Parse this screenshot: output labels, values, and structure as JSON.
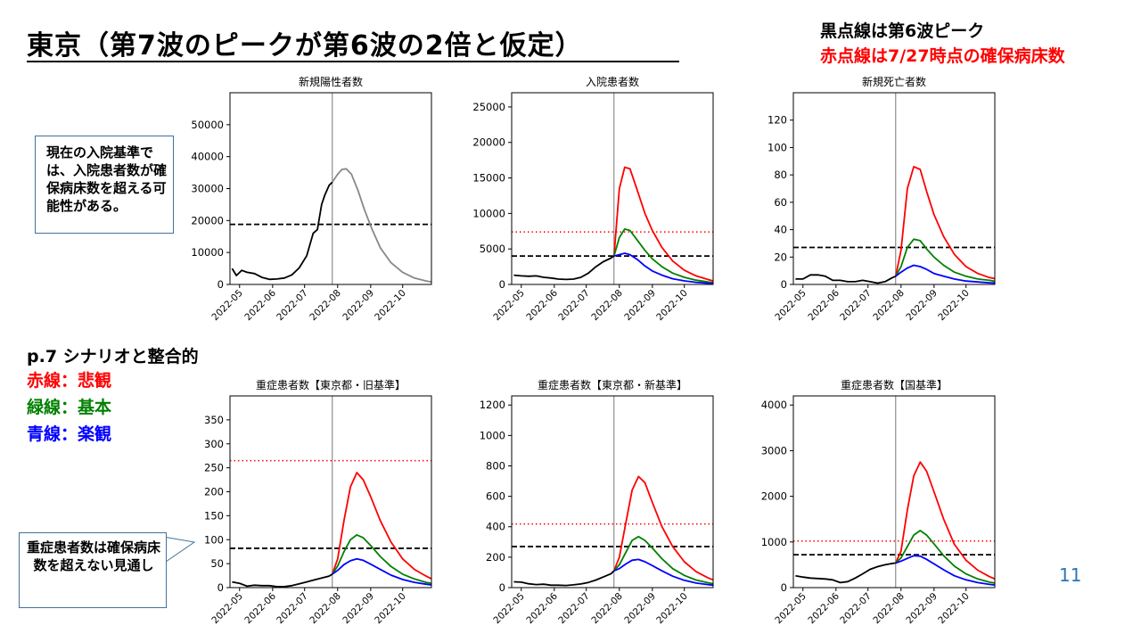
{
  "title": "東京（第7波のピークが第6波の2倍と仮定）",
  "notes": {
    "black_dotted": "黒点線は第6波ピーク",
    "red_dotted": "赤点線は7/27時点の確保病床数"
  },
  "callouts": {
    "admission": "現在の入院基準では、入院患者数が確保病床数を超える可能性がある。",
    "severe": "重症患者数は確保病床数を超えない見通し"
  },
  "legend": {
    "ref": "p.7 シナリオと整合的",
    "red": "赤線：悲観",
    "green": "緑線：基本",
    "blue": "青線：楽観"
  },
  "page_number": "11",
  "colors": {
    "red": "#ff0000",
    "green": "#008000",
    "blue": "#0000ff",
    "black": "#000000",
    "gray": "#888888"
  },
  "chart_data": [
    {
      "type": "line",
      "title": "新規陽性者数",
      "x_ticks": [
        "2022-05",
        "2022-06",
        "2022-07",
        "2022-08",
        "2022-09",
        "2022-10"
      ],
      "ylim": [
        0,
        60000
      ],
      "y_ticks": [
        0,
        10000,
        20000,
        30000,
        40000,
        50000
      ],
      "vline": "2022-07-27",
      "hlines": [
        {
          "value": 18800,
          "style": "black-dashed"
        }
      ],
      "series": [
        {
          "color": "black",
          "x": [
            "2022-04-24",
            "2022-04-28",
            "2022-05-03",
            "2022-05-08",
            "2022-05-15",
            "2022-05-22",
            "2022-05-29",
            "2022-06-05",
            "2022-06-12",
            "2022-06-19",
            "2022-06-26",
            "2022-07-03",
            "2022-07-09",
            "2022-07-13",
            "2022-07-17",
            "2022-07-20",
            "2022-07-24",
            "2022-07-27"
          ],
          "y": [
            5000,
            2800,
            4400,
            3800,
            3400,
            2200,
            1600,
            1700,
            2000,
            3000,
            5200,
            9000,
            16000,
            17200,
            25000,
            28000,
            31000,
            32000
          ]
        },
        {
          "color": "gray",
          "x": [
            "2022-07-27",
            "2022-08-01",
            "2022-08-05",
            "2022-08-09",
            "2022-08-14",
            "2022-08-20",
            "2022-08-26",
            "2022-09-02",
            "2022-09-10",
            "2022-09-20",
            "2022-10-01",
            "2022-10-12",
            "2022-10-23",
            "2022-10-30"
          ],
          "y": [
            32000,
            34500,
            36000,
            36200,
            34500,
            29500,
            23500,
            17500,
            11500,
            6800,
            3800,
            2000,
            1100,
            700
          ]
        }
      ]
    },
    {
      "type": "line",
      "title": "入院患者数",
      "x_ticks": [
        "2022-05",
        "2022-06",
        "2022-07",
        "2022-08",
        "2022-09",
        "2022-10"
      ],
      "ylim": [
        0,
        27000
      ],
      "y_ticks": [
        0,
        5000,
        10000,
        15000,
        20000,
        25000
      ],
      "vline": "2022-07-27",
      "hlines": [
        {
          "value": 4000,
          "style": "black-dashed"
        },
        {
          "value": 7400,
          "style": "red-dotted"
        }
      ],
      "series": [
        {
          "color": "black",
          "x": [
            "2022-04-24",
            "2022-05-01",
            "2022-05-08",
            "2022-05-15",
            "2022-05-22",
            "2022-05-29",
            "2022-06-05",
            "2022-06-12",
            "2022-06-19",
            "2022-06-26",
            "2022-07-03",
            "2022-07-10",
            "2022-07-17",
            "2022-07-24",
            "2022-07-27"
          ],
          "y": [
            1300,
            1200,
            1150,
            1200,
            1000,
            900,
            750,
            700,
            750,
            1000,
            1600,
            2500,
            3200,
            3700,
            4000
          ]
        },
        {
          "color": "red",
          "x": [
            "2022-07-27",
            "2022-08-01",
            "2022-08-06",
            "2022-08-11",
            "2022-08-18",
            "2022-08-25",
            "2022-09-01",
            "2022-09-10",
            "2022-09-20",
            "2022-10-01",
            "2022-10-12",
            "2022-10-23",
            "2022-10-30"
          ],
          "y": [
            4000,
            13500,
            16500,
            16300,
            13200,
            10000,
            7600,
            5200,
            3300,
            2000,
            1200,
            700,
            400
          ]
        },
        {
          "color": "green",
          "x": [
            "2022-07-27",
            "2022-08-01",
            "2022-08-06",
            "2022-08-11",
            "2022-08-18",
            "2022-08-25",
            "2022-09-01",
            "2022-09-10",
            "2022-09-20",
            "2022-10-01",
            "2022-10-12",
            "2022-10-23",
            "2022-10-30"
          ],
          "y": [
            4000,
            6600,
            7800,
            7600,
            6200,
            4800,
            3600,
            2500,
            1600,
            1000,
            600,
            350,
            220
          ]
        },
        {
          "color": "blue",
          "x": [
            "2022-07-27",
            "2022-08-01",
            "2022-08-06",
            "2022-08-11",
            "2022-08-18",
            "2022-08-25",
            "2022-09-01",
            "2022-09-10",
            "2022-09-20",
            "2022-10-01",
            "2022-10-12",
            "2022-10-23",
            "2022-10-30"
          ],
          "y": [
            4000,
            4200,
            4400,
            4200,
            3500,
            2600,
            1900,
            1300,
            800,
            500,
            300,
            180,
            120
          ]
        }
      ]
    },
    {
      "type": "line",
      "title": "新規死亡者数",
      "x_ticks": [
        "2022-05",
        "2022-06",
        "2022-07",
        "2022-08",
        "2022-09",
        "2022-10"
      ],
      "ylim": [
        0,
        140
      ],
      "y_ticks": [
        0,
        20,
        40,
        60,
        80,
        100,
        120
      ],
      "vline": "2022-07-27",
      "hlines": [
        {
          "value": 27,
          "style": "black-dashed"
        }
      ],
      "series": [
        {
          "color": "black",
          "x": [
            "2022-04-24",
            "2022-05-01",
            "2022-05-08",
            "2022-05-15",
            "2022-05-22",
            "2022-05-29",
            "2022-06-05",
            "2022-06-12",
            "2022-06-19",
            "2022-06-26",
            "2022-07-03",
            "2022-07-10",
            "2022-07-17",
            "2022-07-24",
            "2022-07-27"
          ],
          "y": [
            4,
            4,
            7,
            7,
            6,
            3,
            3,
            2,
            2,
            3,
            2,
            1,
            2,
            5,
            6
          ]
        },
        {
          "color": "red",
          "x": [
            "2022-07-27",
            "2022-08-01",
            "2022-08-07",
            "2022-08-13",
            "2022-08-19",
            "2022-08-25",
            "2022-09-01",
            "2022-09-10",
            "2022-09-20",
            "2022-10-01",
            "2022-10-12",
            "2022-10-23",
            "2022-10-30"
          ],
          "y": [
            6,
            25,
            70,
            86,
            84,
            68,
            51,
            35,
            22,
            13,
            8,
            5,
            4
          ]
        },
        {
          "color": "green",
          "x": [
            "2022-07-27",
            "2022-08-01",
            "2022-08-07",
            "2022-08-13",
            "2022-08-19",
            "2022-08-25",
            "2022-09-01",
            "2022-09-10",
            "2022-09-20",
            "2022-10-01",
            "2022-10-12",
            "2022-10-23",
            "2022-10-30"
          ],
          "y": [
            6,
            13,
            27,
            33,
            32,
            26,
            20,
            14,
            9,
            6,
            4,
            3,
            2
          ]
        },
        {
          "color": "blue",
          "x": [
            "2022-07-27",
            "2022-08-01",
            "2022-08-07",
            "2022-08-13",
            "2022-08-19",
            "2022-08-25",
            "2022-09-01",
            "2022-09-10",
            "2022-09-20",
            "2022-10-01",
            "2022-10-12",
            "2022-10-23",
            "2022-10-30"
          ],
          "y": [
            6,
            9,
            12,
            14,
            13,
            11,
            8,
            6,
            4,
            2.5,
            1.8,
            1.2,
            1
          ]
        }
      ]
    },
    {
      "type": "line",
      "title": "重症患者数【東京都・旧基準】",
      "x_ticks": [
        "2022-05",
        "2022-06",
        "2022-07",
        "2022-08",
        "2022-09",
        "2022-10"
      ],
      "ylim": [
        0,
        400
      ],
      "y_ticks": [
        0,
        50,
        100,
        150,
        200,
        250,
        300,
        350
      ],
      "vline": "2022-07-27",
      "hlines": [
        {
          "value": 82,
          "style": "black-dashed"
        },
        {
          "value": 265,
          "style": "red-dotted"
        }
      ],
      "series": [
        {
          "color": "black",
          "x": [
            "2022-04-24",
            "2022-05-01",
            "2022-05-08",
            "2022-05-15",
            "2022-05-22",
            "2022-05-29",
            "2022-06-05",
            "2022-06-12",
            "2022-06-19",
            "2022-06-26",
            "2022-07-03",
            "2022-07-10",
            "2022-07-17",
            "2022-07-24",
            "2022-07-27"
          ],
          "y": [
            12,
            9,
            3,
            5,
            4,
            4,
            2,
            2,
            4,
            8,
            12,
            16,
            20,
            24,
            28
          ]
        },
        {
          "color": "red",
          "x": [
            "2022-07-27",
            "2022-08-01",
            "2022-08-07",
            "2022-08-13",
            "2022-08-19",
            "2022-08-25",
            "2022-09-01",
            "2022-09-10",
            "2022-09-20",
            "2022-10-01",
            "2022-10-12",
            "2022-10-23",
            "2022-10-30"
          ],
          "y": [
            28,
            60,
            140,
            210,
            240,
            225,
            190,
            140,
            95,
            60,
            38,
            24,
            16
          ]
        },
        {
          "color": "green",
          "x": [
            "2022-07-27",
            "2022-08-01",
            "2022-08-07",
            "2022-08-13",
            "2022-08-19",
            "2022-08-25",
            "2022-09-01",
            "2022-09-10",
            "2022-09-20",
            "2022-10-01",
            "2022-10-12",
            "2022-10-23",
            "2022-10-30"
          ],
          "y": [
            28,
            45,
            75,
            100,
            110,
            104,
            88,
            65,
            44,
            28,
            18,
            11,
            8
          ]
        },
        {
          "color": "blue",
          "x": [
            "2022-07-27",
            "2022-08-01",
            "2022-08-07",
            "2022-08-13",
            "2022-08-19",
            "2022-08-25",
            "2022-09-01",
            "2022-09-10",
            "2022-09-20",
            "2022-10-01",
            "2022-10-12",
            "2022-10-23",
            "2022-10-30"
          ],
          "y": [
            28,
            36,
            48,
            56,
            60,
            57,
            49,
            38,
            26,
            17,
            11,
            7,
            5
          ]
        }
      ]
    },
    {
      "type": "line",
      "title": "重症患者数【東京都・新基準】",
      "x_ticks": [
        "2022-05",
        "2022-06",
        "2022-07",
        "2022-08",
        "2022-09",
        "2022-10"
      ],
      "ylim": [
        0,
        1260
      ],
      "y_ticks": [
        0,
        200,
        400,
        600,
        800,
        1000,
        1200
      ],
      "vline": "2022-07-27",
      "hlines": [
        {
          "value": 270,
          "style": "black-dashed"
        },
        {
          "value": 418,
          "style": "red-dotted"
        }
      ],
      "series": [
        {
          "color": "black",
          "x": [
            "2022-04-24",
            "2022-05-01",
            "2022-05-08",
            "2022-05-15",
            "2022-05-22",
            "2022-05-29",
            "2022-06-05",
            "2022-06-12",
            "2022-06-19",
            "2022-06-26",
            "2022-07-03",
            "2022-07-10",
            "2022-07-17",
            "2022-07-24",
            "2022-07-27"
          ],
          "y": [
            38,
            36,
            25,
            20,
            22,
            16,
            16,
            14,
            18,
            24,
            34,
            50,
            70,
            90,
            110
          ]
        },
        {
          "color": "red",
          "x": [
            "2022-07-27",
            "2022-08-01",
            "2022-08-07",
            "2022-08-13",
            "2022-08-19",
            "2022-08-25",
            "2022-09-01",
            "2022-09-10",
            "2022-09-20",
            "2022-10-01",
            "2022-10-12",
            "2022-10-23",
            "2022-10-30"
          ],
          "y": [
            110,
            200,
            420,
            640,
            730,
            690,
            560,
            400,
            270,
            170,
            105,
            65,
            45
          ]
        },
        {
          "color": "green",
          "x": [
            "2022-07-27",
            "2022-08-01",
            "2022-08-07",
            "2022-08-13",
            "2022-08-19",
            "2022-08-25",
            "2022-09-01",
            "2022-09-10",
            "2022-09-20",
            "2022-10-01",
            "2022-10-12",
            "2022-10-23",
            "2022-10-30"
          ],
          "y": [
            110,
            150,
            230,
            310,
            335,
            310,
            260,
            190,
            125,
            80,
            50,
            32,
            22
          ]
        },
        {
          "color": "blue",
          "x": [
            "2022-07-27",
            "2022-08-01",
            "2022-08-07",
            "2022-08-13",
            "2022-08-19",
            "2022-08-25",
            "2022-09-01",
            "2022-09-10",
            "2022-09-20",
            "2022-10-01",
            "2022-10-12",
            "2022-10-23",
            "2022-10-30"
          ],
          "y": [
            110,
            125,
            155,
            180,
            185,
            170,
            145,
            110,
            75,
            48,
            30,
            20,
            14
          ]
        }
      ]
    },
    {
      "type": "line",
      "title": "重症患者数【国基準】",
      "x_ticks": [
        "2022-05",
        "2022-06",
        "2022-07",
        "2022-08",
        "2022-09",
        "2022-10"
      ],
      "ylim": [
        0,
        4200
      ],
      "y_ticks": [
        0,
        1000,
        2000,
        3000,
        4000
      ],
      "vline": "2022-07-27",
      "hlines": [
        {
          "value": 720,
          "style": "black-dashed"
        },
        {
          "value": 1020,
          "style": "red-dotted"
        }
      ],
      "series": [
        {
          "color": "black",
          "x": [
            "2022-04-24",
            "2022-05-01",
            "2022-05-08",
            "2022-05-15",
            "2022-05-22",
            "2022-05-29",
            "2022-06-05",
            "2022-06-12",
            "2022-06-19",
            "2022-06-26",
            "2022-07-03",
            "2022-07-10",
            "2022-07-17",
            "2022-07-24",
            "2022-07-27"
          ],
          "y": [
            260,
            230,
            210,
            200,
            190,
            170,
            110,
            130,
            210,
            300,
            400,
            460,
            500,
            530,
            540
          ]
        },
        {
          "color": "red",
          "x": [
            "2022-07-27",
            "2022-08-01",
            "2022-08-07",
            "2022-08-13",
            "2022-08-19",
            "2022-08-25",
            "2022-09-01",
            "2022-09-10",
            "2022-09-20",
            "2022-10-01",
            "2022-10-12",
            "2022-10-23",
            "2022-10-30"
          ],
          "y": [
            540,
            800,
            1700,
            2450,
            2750,
            2550,
            2100,
            1500,
            950,
            600,
            380,
            240,
            170
          ]
        },
        {
          "color": "green",
          "x": [
            "2022-07-27",
            "2022-08-01",
            "2022-08-07",
            "2022-08-13",
            "2022-08-19",
            "2022-08-25",
            "2022-09-01",
            "2022-09-10",
            "2022-09-20",
            "2022-10-01",
            "2022-10-12",
            "2022-10-23",
            "2022-10-30"
          ],
          "y": [
            540,
            650,
            900,
            1150,
            1250,
            1150,
            960,
            700,
            470,
            300,
            190,
            120,
            90
          ]
        },
        {
          "color": "blue",
          "x": [
            "2022-07-27",
            "2022-08-01",
            "2022-08-07",
            "2022-08-13",
            "2022-08-19",
            "2022-08-25",
            "2022-09-01",
            "2022-09-10",
            "2022-09-20",
            "2022-10-01",
            "2022-10-12",
            "2022-10-23",
            "2022-10-30"
          ],
          "y": [
            540,
            580,
            640,
            700,
            690,
            620,
            520,
            390,
            260,
            170,
            110,
            70,
            50
          ]
        }
      ]
    }
  ]
}
